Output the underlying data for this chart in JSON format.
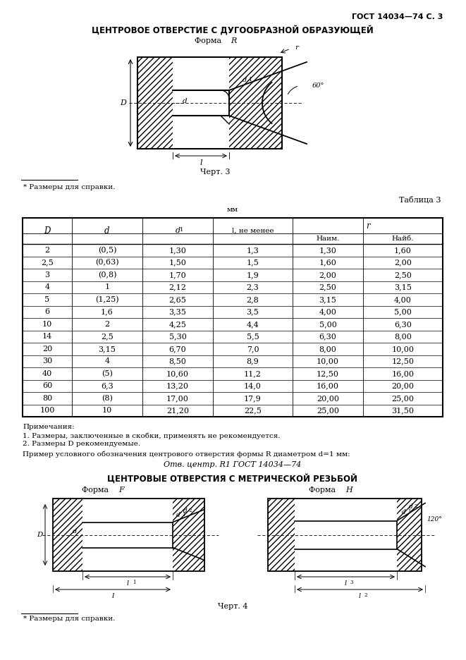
{
  "page_header": "ГОСТ 14034—74 С. 3",
  "title1": "ЦЕНТРОВОЕ ОТВЕРСТИЕ С ДУГООБРАЗНОЙ ОБРАЗУЮЩЕЙ",
  "subtitle1_text": "Форма ",
  "subtitle1_italic": "R",
  "figure_caption1": "Черт. 3",
  "note_asterisk": "* Размеры для справки.",
  "table_label": "Таблица 3",
  "table_unit": "мм",
  "r_subheaders": [
    "Наим.",
    "Найб."
  ],
  "table_data": [
    [
      "2",
      "(0,5)",
      "1,30",
      "1,3",
      "1,30",
      "1,60"
    ],
    [
      "2,5",
      "(0,63)",
      "1,50",
      "1,5",
      "1,60",
      "2,00"
    ],
    [
      "3",
      "(0,8)",
      "1,70",
      "1,9",
      "2,00",
      "2,50"
    ],
    [
      "4",
      "1",
      "2,12",
      "2,3",
      "2,50",
      "3,15"
    ],
    [
      "5",
      "(1,25)",
      "2,65",
      "2,8",
      "3,15",
      "4,00"
    ],
    [
      "6",
      "1,6",
      "3,35",
      "3,5",
      "4,00",
      "5,00"
    ],
    [
      "10",
      "2",
      "4,25",
      "4,4",
      "5,00",
      "6,30"
    ],
    [
      "14",
      "2,5",
      "5,30",
      "5,5",
      "6,30",
      "8,00"
    ],
    [
      "20",
      "3,15",
      "6,70",
      "7,0",
      "8,00",
      "10,00"
    ],
    [
      "30",
      "4",
      "8,50",
      "8,9",
      "10,00",
      "12,50"
    ],
    [
      "40",
      "(5)",
      "10,60",
      "11,2",
      "12,50",
      "16,00"
    ],
    [
      "60",
      "6,3",
      "13,20",
      "14,0",
      "16,00",
      "20,00"
    ],
    [
      "80",
      "(8)",
      "17,00",
      "17,9",
      "20,00",
      "25,00"
    ],
    [
      "100",
      "10",
      "21,20",
      "22,5",
      "25,00",
      "31,50"
    ]
  ],
  "notes_title": "Примечания:",
  "notes": [
    "1. Размеры, заключенные в скобки, применять не рекомендуется.",
    "2. Размеры D рекомендуемые."
  ],
  "example_text1": "Пример условного обозначения центрового отверстия формы R диаметром d=1 мм:",
  "example_text2": "Отв. центр. R1 ГОСТ 14034—74",
  "title2": "ЦЕНТРОВЫЕ ОТВЕРСТИЯ С МЕТРИЧЕСКОЙ РЕЗЬБОЙ",
  "subtitle2F_text": "Форма ",
  "subtitle2F_italic": "F",
  "subtitle2H_text": "Форма ",
  "subtitle2H_italic": "H",
  "figure_caption2": "Черт. 4",
  "note_asterisk2": "* Размеры для справки.",
  "bg_color": "#ffffff",
  "text_color": "#000000"
}
